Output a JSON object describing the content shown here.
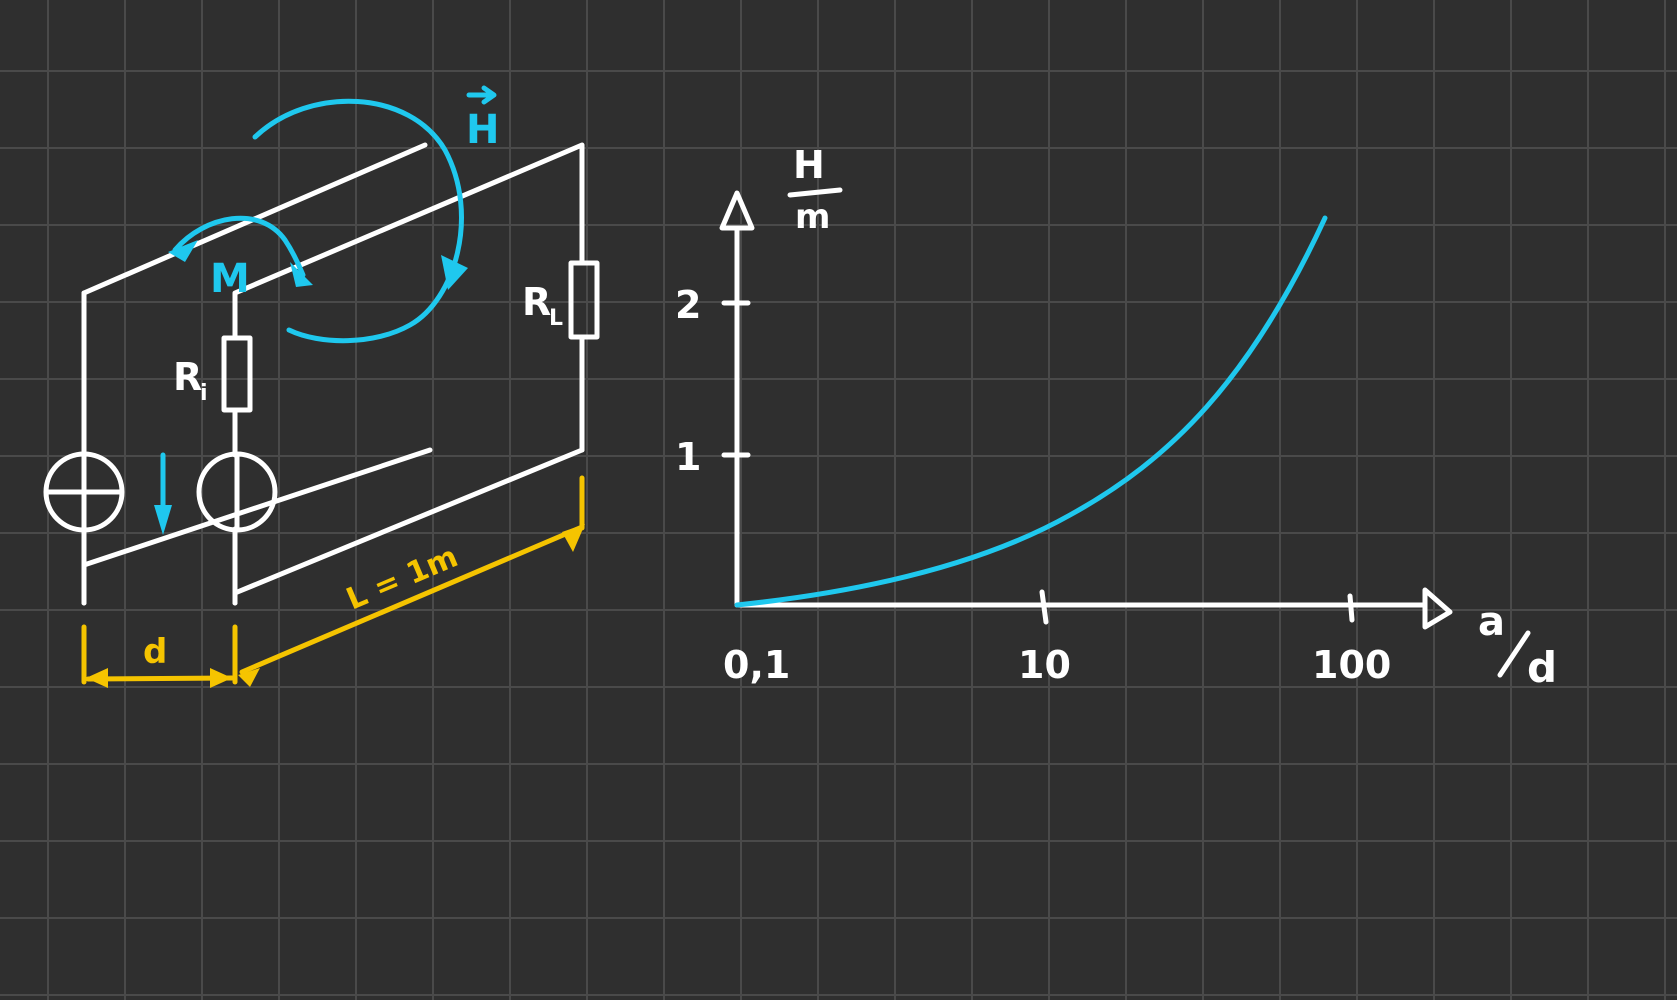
{
  "labels": {
    "field": "H",
    "moment": "M",
    "internal_resistor": "R",
    "internal_resistor_sub": "i",
    "load_resistor": "R",
    "load_resistor_sub": "L",
    "length": "L = 1m",
    "spacing": "d"
  },
  "plot": {
    "y_unit_top": "H",
    "y_unit_bottom": "m",
    "y_ticks": [
      "1",
      "2"
    ],
    "x_ticks": [
      "0,1",
      "10",
      "100"
    ],
    "x_label_num": "a",
    "x_label_den": "d"
  },
  "colors": {
    "wire": "#ffffff",
    "field": "#1fc8ee",
    "dimension": "#f5c400",
    "background": "#2f2f2f",
    "grid": "#4a4a4a"
  }
}
